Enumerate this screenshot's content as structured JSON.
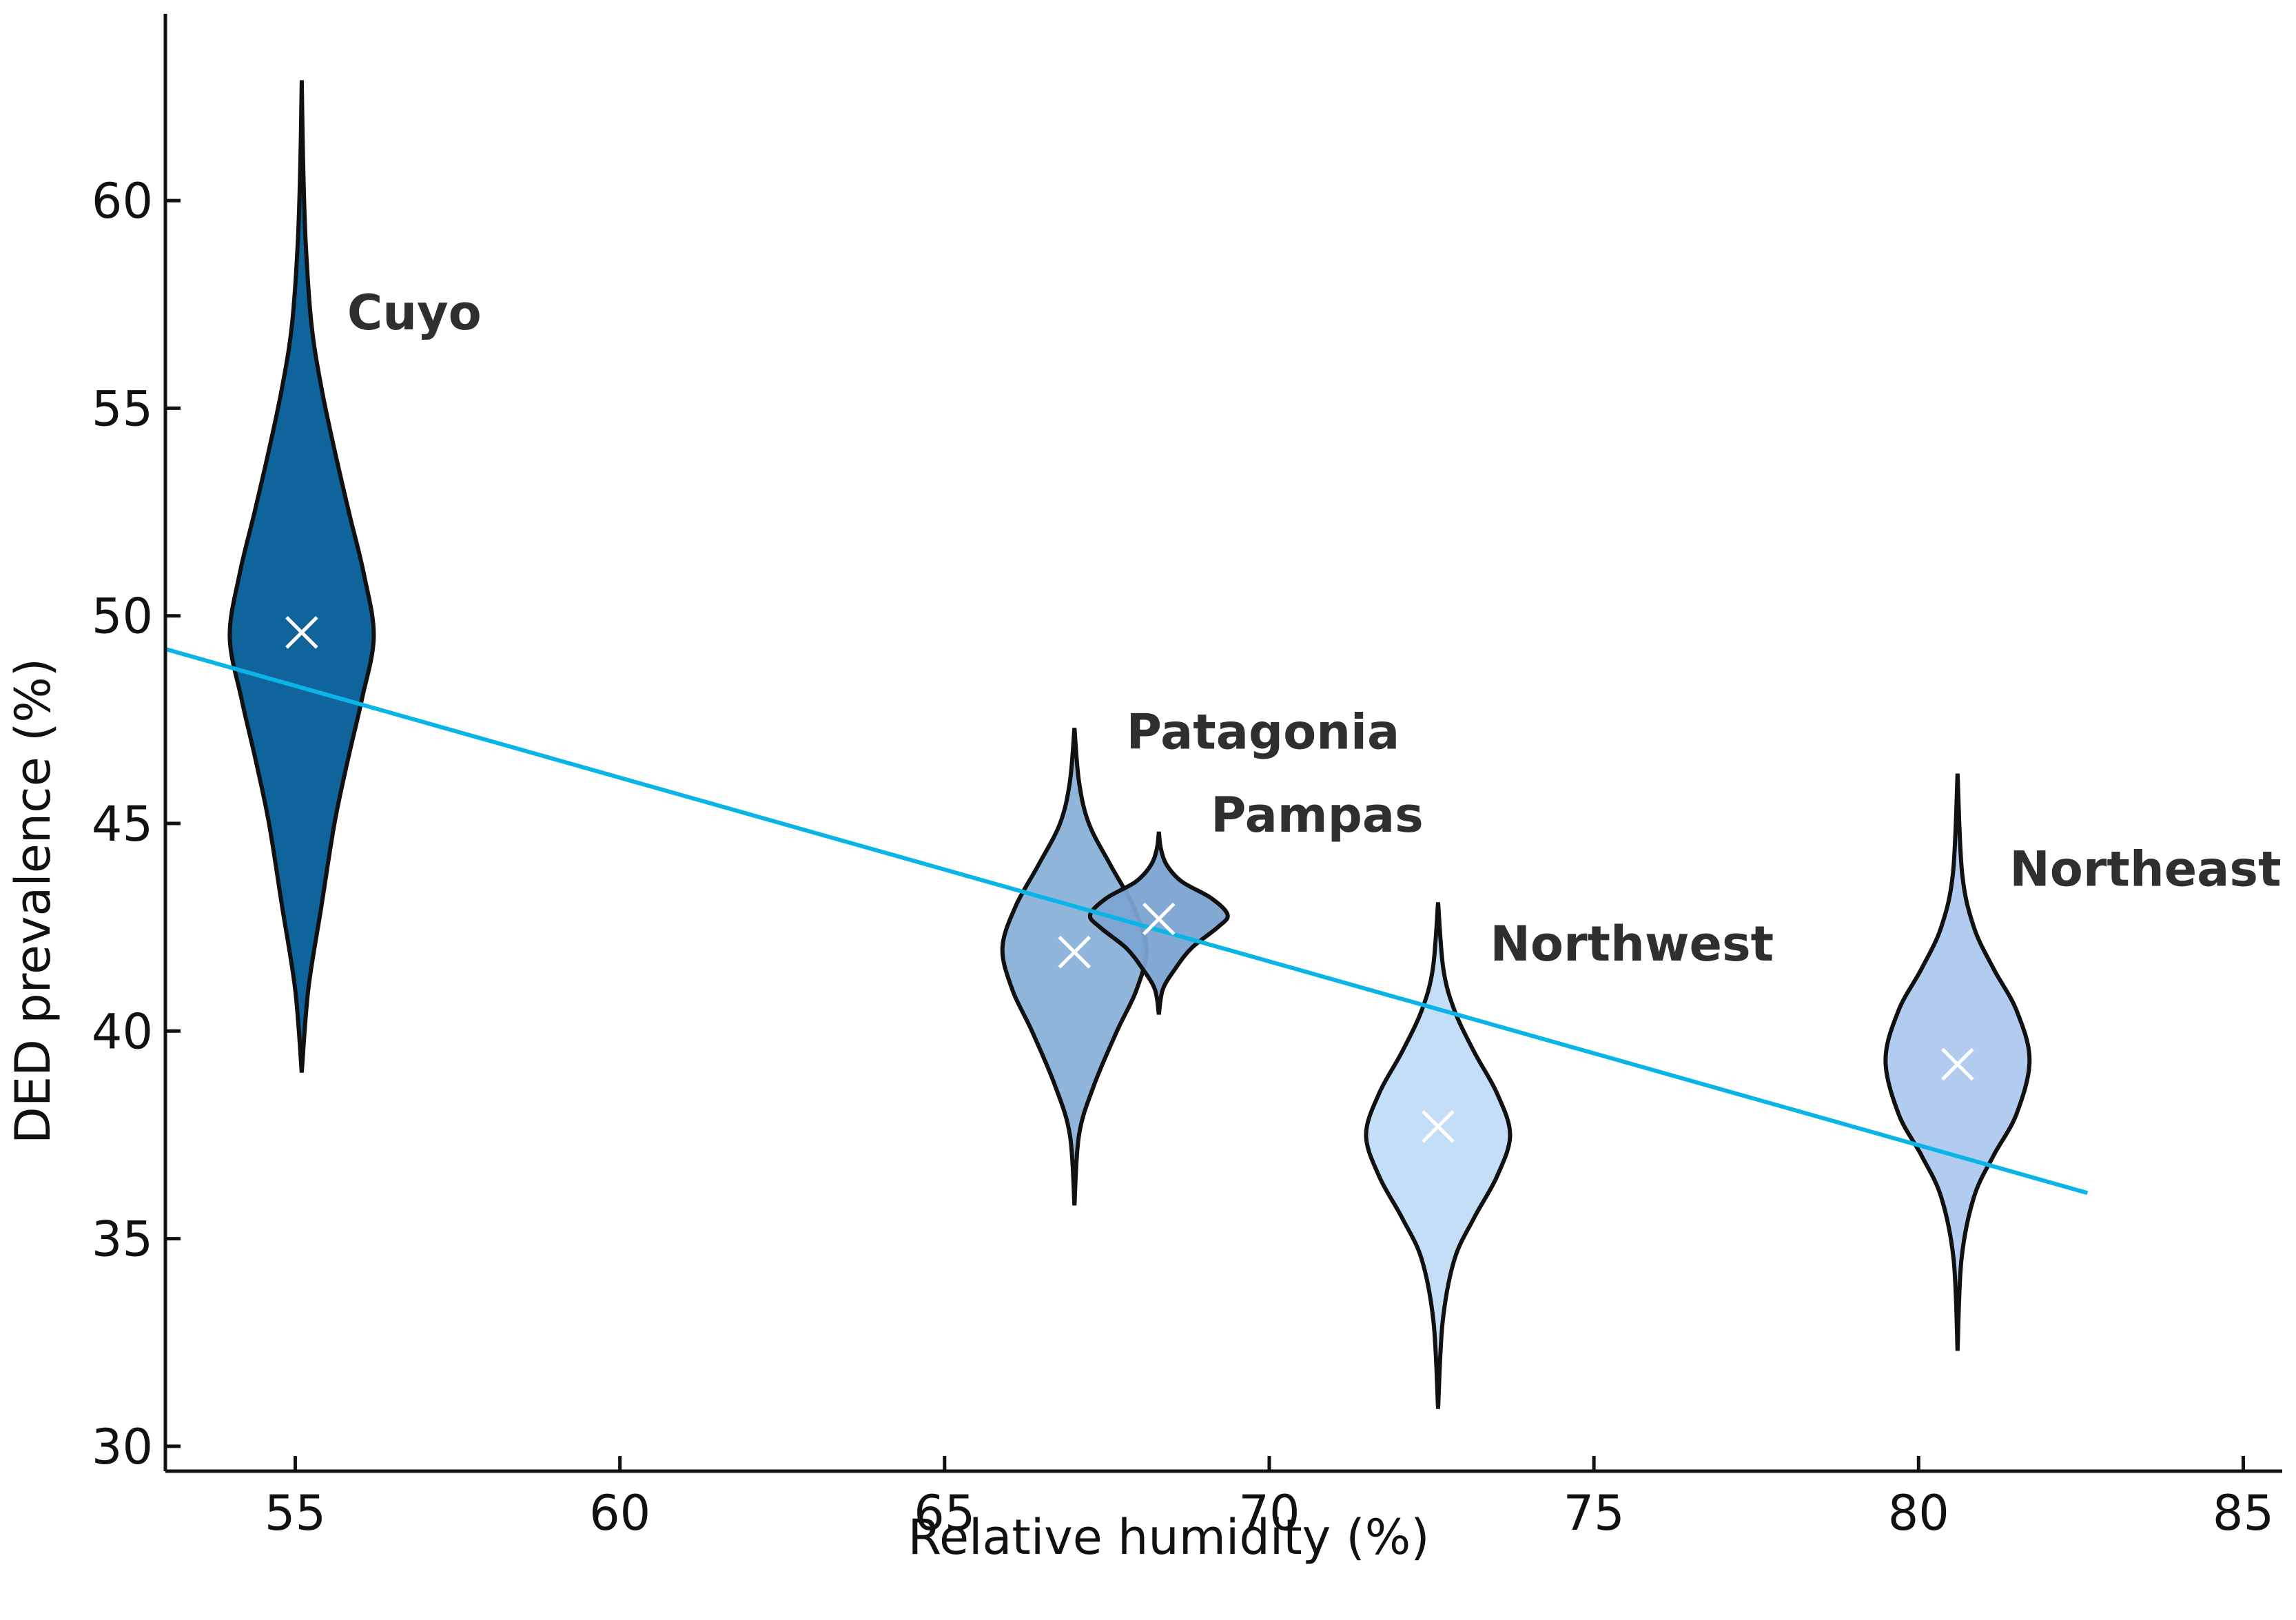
{
  "chart_data": {
    "type": "violin",
    "title": "",
    "xlabel": "Relative humidity (%)",
    "ylabel": "DED prevalence (%)",
    "xlim": [
      53.0,
      85.6
    ],
    "ylim": [
      29.4,
      64.5
    ],
    "xticks": [
      55,
      60,
      65,
      70,
      75,
      80,
      85
    ],
    "yticks": [
      30,
      35,
      40,
      45,
      50,
      55,
      60
    ],
    "grid": false,
    "trend_line": {
      "color": "#0ab4e6",
      "x_start": 53.0,
      "y_start": 49.2,
      "x_end": 82.6,
      "y_end": 36.1
    },
    "regions": [
      {
        "name": "Cuyo",
        "x": 55.1,
        "mean": 49.6,
        "min": 39.0,
        "max": 62.9,
        "color": "#025c96",
        "label_x": 55.8,
        "label_y": 56.9,
        "profile": [
          [
            39.0,
            0.0
          ],
          [
            41.0,
            0.1
          ],
          [
            43.0,
            0.3
          ],
          [
            45.0,
            0.5
          ],
          [
            46.5,
            0.7
          ],
          [
            48.0,
            0.92
          ],
          [
            49.5,
            1.1
          ],
          [
            51.0,
            0.95
          ],
          [
            52.5,
            0.72
          ],
          [
            54.0,
            0.5
          ],
          [
            55.5,
            0.3
          ],
          [
            57.0,
            0.15
          ],
          [
            59.0,
            0.06
          ],
          [
            61.0,
            0.02
          ],
          [
            62.9,
            0.0
          ]
        ]
      },
      {
        "name": "Patagonia",
        "x": 67.0,
        "mean": 41.9,
        "min": 35.8,
        "max": 47.3,
        "color": "#8ab1d9",
        "label_x": 67.8,
        "label_y": 46.8,
        "profile": [
          [
            35.8,
            0.0
          ],
          [
            37.5,
            0.07
          ],
          [
            38.7,
            0.3
          ],
          [
            40.0,
            0.65
          ],
          [
            41.0,
            0.95
          ],
          [
            42.0,
            1.1
          ],
          [
            43.0,
            0.9
          ],
          [
            44.0,
            0.55
          ],
          [
            45.0,
            0.22
          ],
          [
            46.0,
            0.07
          ],
          [
            47.3,
            0.0
          ]
        ]
      },
      {
        "name": "Pampas",
        "x": 68.3,
        "mean": 42.7,
        "min": 40.4,
        "max": 44.8,
        "color": "#7ba4d2",
        "label_x": 69.1,
        "label_y": 44.8,
        "profile": [
          [
            40.4,
            0.0
          ],
          [
            41.0,
            0.06
          ],
          [
            41.5,
            0.25
          ],
          [
            42.0,
            0.5
          ],
          [
            42.5,
            0.9
          ],
          [
            42.8,
            1.05
          ],
          [
            43.2,
            0.8
          ],
          [
            43.6,
            0.35
          ],
          [
            44.0,
            0.12
          ],
          [
            44.4,
            0.03
          ],
          [
            44.8,
            0.0
          ]
        ]
      },
      {
        "name": "Northwest",
        "x": 72.6,
        "mean": 37.7,
        "min": 30.9,
        "max": 43.1,
        "color": "#c2dcf7",
        "label_x": 73.4,
        "label_y": 41.7,
        "profile": [
          [
            30.9,
            0.0
          ],
          [
            33.0,
            0.07
          ],
          [
            34.5,
            0.25
          ],
          [
            35.5,
            0.55
          ],
          [
            36.5,
            0.9
          ],
          [
            37.5,
            1.1
          ],
          [
            38.5,
            0.9
          ],
          [
            39.5,
            0.55
          ],
          [
            40.5,
            0.25
          ],
          [
            41.5,
            0.08
          ],
          [
            43.1,
            0.0
          ]
        ]
      },
      {
        "name": "Northeast",
        "x": 80.6,
        "mean": 39.2,
        "min": 32.3,
        "max": 46.2,
        "color": "#aec9ee",
        "label_x": 81.4,
        "label_y": 43.5,
        "profile": [
          [
            32.3,
            0.0
          ],
          [
            34.5,
            0.06
          ],
          [
            36.0,
            0.25
          ],
          [
            37.0,
            0.55
          ],
          [
            38.0,
            0.9
          ],
          [
            39.3,
            1.1
          ],
          [
            40.5,
            0.9
          ],
          [
            41.5,
            0.55
          ],
          [
            42.5,
            0.25
          ],
          [
            43.8,
            0.07
          ],
          [
            46.2,
            0.0
          ]
        ]
      }
    ]
  }
}
